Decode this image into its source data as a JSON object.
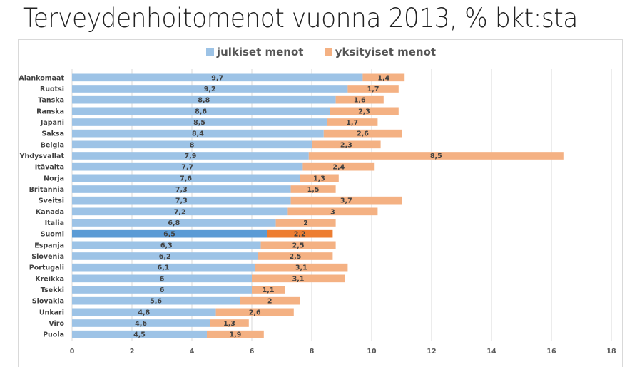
{
  "chart_data": {
    "type": "bar",
    "orientation": "horizontal",
    "stacked": true,
    "title": "Terveydenhoitomenot vuonna 2013, % bkt:sta",
    "xlabel": "",
    "ylabel": "",
    "xlim": [
      0,
      18
    ],
    "xticks": [
      0,
      2,
      4,
      6,
      8,
      10,
      12,
      14,
      16,
      18
    ],
    "grid": true,
    "legend_position": "top-center",
    "highlight_category": "Suomi",
    "categories": [
      "Alankomaat",
      "Ruotsi",
      "Tanska",
      "Ranska",
      "Japani",
      "Saksa",
      "Belgia",
      "Yhdysvallat",
      "Itävalta",
      "Norja",
      "Britannia",
      "Sveitsi",
      "Kanada",
      "Italia",
      "Suomi",
      "Espanja",
      "Slovenia",
      "Portugali",
      "Kreikka",
      "Tsekki",
      "Slovakia",
      "Unkari",
      "Viro",
      "Puola"
    ],
    "series": [
      {
        "name": "julkiset menot",
        "color": "#9dc3e6",
        "highlight_color": "#5b9bd5",
        "values": [
          9.7,
          9.2,
          8.8,
          8.6,
          8.5,
          8.4,
          8,
          7.9,
          7.7,
          7.6,
          7.3,
          7.3,
          7.2,
          6.8,
          6.5,
          6.3,
          6.2,
          6.1,
          6,
          6,
          5.6,
          4.8,
          4.6,
          4.5
        ],
        "labels": [
          "9,7",
          "9,2",
          "8,8",
          "8,6",
          "8,5",
          "8,4",
          "8",
          "7,9",
          "7,7",
          "7,6",
          "7,3",
          "7,3",
          "7,2",
          "6,8",
          "6,5",
          "6,3",
          "6,2",
          "6,1",
          "6",
          "6",
          "5,6",
          "4,8",
          "4,6",
          "4,5"
        ]
      },
      {
        "name": "yksityiset menot",
        "color": "#f4b183",
        "highlight_color": "#ed7d31",
        "values": [
          1.4,
          1.7,
          1.6,
          2.3,
          1.7,
          2.6,
          2.3,
          8.5,
          2.4,
          1.3,
          1.5,
          3.7,
          3,
          2,
          2.2,
          2.5,
          2.5,
          3.1,
          3.1,
          1.1,
          2,
          2.6,
          1.3,
          1.9
        ],
        "labels": [
          "1,4",
          "1,7",
          "1,6",
          "2,3",
          "1,7",
          "2,6",
          "2,3",
          "8,5",
          "2,4",
          "1,3",
          "1,5",
          "3,7",
          "3",
          "2",
          "2,2",
          "2,5",
          "2,5",
          "3,1",
          "3,1",
          "1,1",
          "2",
          "2,6",
          "1,3",
          "1,9"
        ]
      }
    ]
  }
}
